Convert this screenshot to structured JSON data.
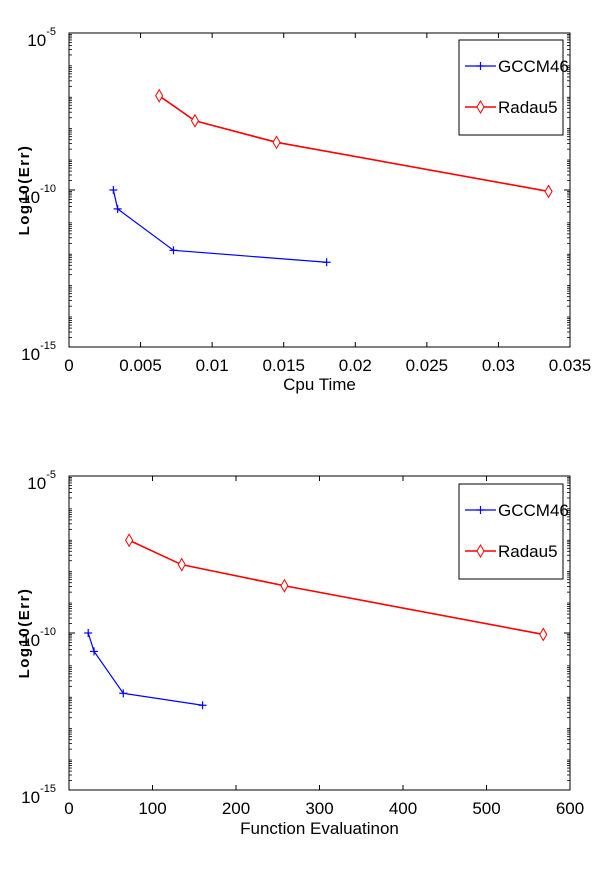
{
  "chart_data": [
    {
      "type": "line",
      "xlabel": "Cpu Time",
      "ylabel": "Log10(Err)",
      "yscale": "log",
      "xlim": [
        0,
        0.035
      ],
      "ylim": [
        1e-15,
        1e-05
      ],
      "xticks": [
        "0",
        "0.005",
        "0.01",
        "0.015",
        "0.02",
        "0.025",
        "0.03",
        "0.035"
      ],
      "xtick_values": [
        0,
        0.005,
        0.01,
        0.015,
        0.02,
        0.025,
        0.03,
        0.035
      ],
      "yticks": [
        {
          "base": "10",
          "exp": "-5",
          "value": 1e-05
        },
        {
          "base": "10",
          "exp": "-10",
          "value": 1e-10
        },
        {
          "base": "10",
          "exp": "-15",
          "value": 1e-15
        }
      ],
      "legend_position": "top-right",
      "series": [
        {
          "name": "GCCM46",
          "color": "#0000ff",
          "marker": "plus",
          "x": [
            0.0031,
            0.0034,
            0.0073,
            0.018
          ],
          "y": [
            1e-10,
            2.5e-11,
            1.2e-12,
            5e-13
          ]
        },
        {
          "name": "Radau5",
          "color": "#ff0000",
          "marker": "diamond",
          "x": [
            0.0063,
            0.0088,
            0.0145,
            0.0335
          ],
          "y": [
            1e-07,
            1.6e-08,
            3.3e-09,
            9e-11
          ]
        }
      ]
    },
    {
      "type": "line",
      "xlabel": "Function Evaluatinon",
      "ylabel": "Log10(Err)",
      "yscale": "log",
      "xlim": [
        0,
        600
      ],
      "ylim": [
        1e-15,
        1e-05
      ],
      "xticks": [
        "0",
        "100",
        "200",
        "300",
        "400",
        "500",
        "600"
      ],
      "xtick_values": [
        0,
        100,
        200,
        300,
        400,
        500,
        600
      ],
      "yticks": [
        {
          "base": "10",
          "exp": "-5",
          "value": 1e-05
        },
        {
          "base": "10",
          "exp": "-10",
          "value": 1e-10
        },
        {
          "base": "10",
          "exp": "-15",
          "value": 1e-15
        }
      ],
      "legend_position": "top-right",
      "series": [
        {
          "name": "GCCM46",
          "color": "#0000ff",
          "marker": "plus",
          "x": [
            23,
            30,
            65,
            160
          ],
          "y": [
            1e-10,
            2.6e-11,
            1.2e-12,
            5e-13
          ]
        },
        {
          "name": "Radau5",
          "color": "#ff0000",
          "marker": "diamond",
          "x": [
            72,
            135,
            258,
            568
          ],
          "y": [
            9e-08,
            1.5e-08,
            3.2e-09,
            9e-11
          ]
        }
      ]
    }
  ]
}
